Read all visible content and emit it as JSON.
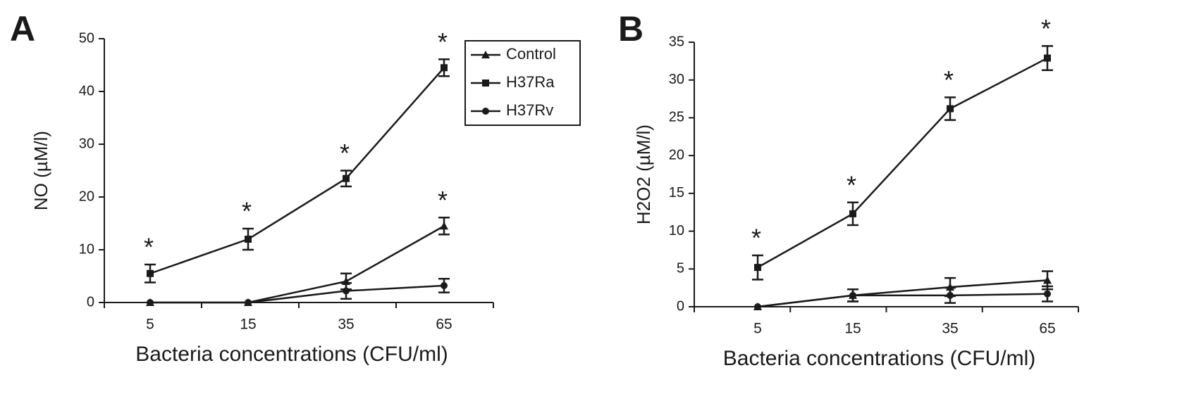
{
  "chart_data": [
    {
      "type": "line",
      "panel": "A",
      "x_label": "Bacteria concentrations (CFU/ml)",
      "y_label": "NO (µM/l)",
      "categories": [
        "5",
        "15",
        "35",
        "65"
      ],
      "ylim": [
        0,
        50
      ],
      "yticks": [
        0,
        10,
        20,
        30,
        40,
        50
      ],
      "legend": "upper right",
      "series": [
        {
          "name": "Control",
          "color": "#1a1a1a",
          "marker": "triangle",
          "values": [
            0,
            0,
            4,
            14.5
          ],
          "errors": [
            0,
            0,
            1.5,
            1.6
          ],
          "annotations": [
            null,
            null,
            null,
            "*"
          ]
        },
        {
          "name": "H37Ra",
          "color": "#1a1a1a",
          "marker": "square",
          "values": [
            5.5,
            12,
            23.5,
            44.5
          ],
          "errors": [
            1.7,
            2,
            1.5,
            1.6
          ],
          "annotations": [
            "*",
            "*",
            "*",
            "*"
          ]
        },
        {
          "name": "H37Rv",
          "color": "#1a1a1a",
          "marker": "circle",
          "values": [
            0,
            0,
            2.2,
            3.2
          ],
          "errors": [
            0,
            0,
            1.5,
            1.3
          ],
          "annotations": [
            null,
            null,
            null,
            null
          ]
        }
      ]
    },
    {
      "type": "line",
      "panel": "B",
      "x_label": "Bacteria concentrations (CFU/ml)",
      "y_label": "H2O2 (µM/l)",
      "categories": [
        "5",
        "15",
        "35",
        "65"
      ],
      "ylim": [
        0,
        35
      ],
      "yticks": [
        0,
        5,
        10,
        15,
        20,
        25,
        30,
        35
      ],
      "legend": false,
      "series": [
        {
          "name": "Control",
          "color": "#1a1a1a",
          "marker": "triangle",
          "values": [
            0,
            1.5,
            2.6,
            3.5
          ],
          "errors": [
            0,
            0.8,
            1.2,
            1.2
          ],
          "annotations": [
            null,
            null,
            null,
            null
          ]
        },
        {
          "name": "H37Ra",
          "color": "#1a1a1a",
          "marker": "square",
          "values": [
            5.2,
            12.3,
            26.2,
            32.9
          ],
          "errors": [
            1.6,
            1.5,
            1.5,
            1.6
          ],
          "annotations": [
            "*",
            "*",
            "*",
            "*"
          ]
        },
        {
          "name": "H37Rv",
          "color": "#1a1a1a",
          "marker": "circle",
          "values": [
            0,
            1.5,
            1.5,
            1.7
          ],
          "errors": [
            0,
            0.8,
            1,
            1
          ],
          "annotations": [
            null,
            null,
            null,
            null
          ]
        }
      ]
    }
  ]
}
